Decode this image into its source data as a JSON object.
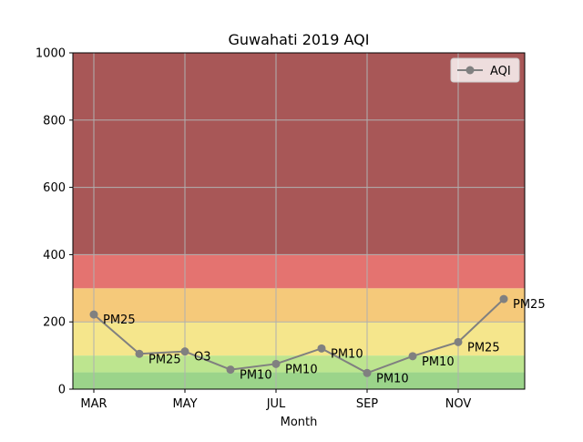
{
  "chart_data": {
    "type": "line",
    "title": "Guwahati 2019 AQI",
    "xlabel": "Month",
    "ylabel": "",
    "ylim": [
      0,
      1000
    ],
    "yticks": [
      0,
      200,
      400,
      600,
      800,
      1000
    ],
    "xtick_labels": [
      "MAR",
      "MAY",
      "JUL",
      "SEP",
      "NOV"
    ],
    "categories": [
      "MAR",
      "APR",
      "MAY",
      "JUN",
      "JUL",
      "AUG",
      "SEP",
      "OCT",
      "NOV",
      "DEC"
    ],
    "grid": true,
    "legend": {
      "position": "top-right",
      "entries": [
        "AQI"
      ]
    },
    "series": [
      {
        "name": "AQI",
        "color": "#808080",
        "values": [
          222,
          105,
          112,
          58,
          75,
          121,
          48,
          98,
          140,
          268
        ],
        "labels": [
          "PM25",
          "PM25",
          "O3",
          "PM10",
          "PM10",
          "PM10",
          "PM10",
          "PM10",
          "PM25",
          "PM25"
        ]
      }
    ],
    "bands": [
      {
        "from": 0,
        "to": 50,
        "color": "#9bd48a"
      },
      {
        "from": 50,
        "to": 100,
        "color": "#bde58f"
      },
      {
        "from": 100,
        "to": 200,
        "color": "#f5e68c"
      },
      {
        "from": 200,
        "to": 300,
        "color": "#f5c97a"
      },
      {
        "from": 300,
        "to": 400,
        "color": "#e47370"
      },
      {
        "from": 400,
        "to": 1000,
        "color": "#a85757"
      }
    ]
  }
}
